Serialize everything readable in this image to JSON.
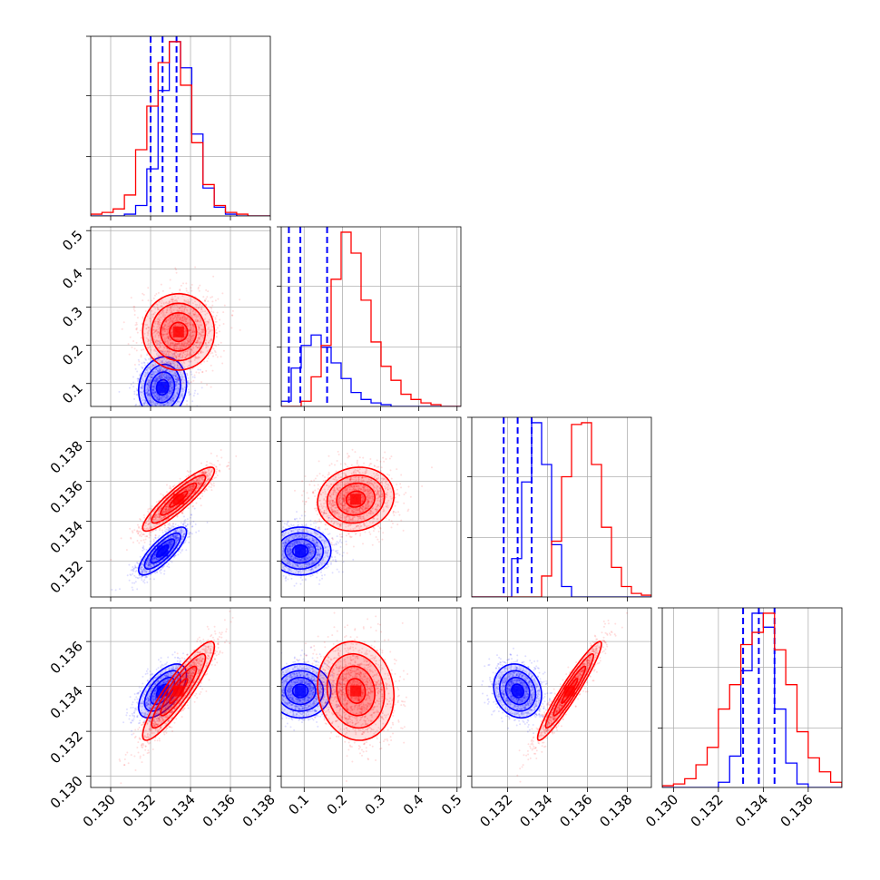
{
  "chart_data": {
    "type": "corner",
    "title": "",
    "n_params": 4,
    "grid": true,
    "params": [
      {
        "range": [
          0.129,
          0.138
        ],
        "ticks": [
          0.13,
          0.132,
          0.134,
          0.136,
          0.138
        ],
        "tick_labels": [
          "0.130",
          "0.132",
          "0.134",
          "0.136",
          "0.138"
        ],
        "label": ""
      },
      {
        "range": [
          0.04,
          0.51
        ],
        "ticks": [
          0.1,
          0.2,
          0.3,
          0.4,
          0.5
        ],
        "tick_labels": [
          "0.1",
          "0.2",
          "0.3",
          "0.4",
          "0.5"
        ],
        "label": ""
      },
      {
        "range": [
          0.1302,
          0.1392
        ],
        "ticks": [
          0.132,
          0.134,
          0.136,
          0.138
        ],
        "tick_labels": [
          "0.132",
          "0.134",
          "0.136",
          "0.138"
        ],
        "label": ""
      },
      {
        "range": [
          0.1295,
          0.1375
        ],
        "ticks": [
          0.13,
          0.132,
          0.134,
          0.136
        ],
        "tick_labels": [
          "0.130",
          "0.132",
          "0.134",
          "0.136"
        ],
        "label": ""
      }
    ],
    "series": [
      {
        "color": "#0000ff",
        "means": [
          0.1326,
          0.09,
          0.1325,
          0.1338
        ],
        "sigmas": [
          0.0006,
          0.04,
          0.0006,
          0.0006
        ],
        "correlations": [
          [
            1,
            0.1,
            0.8,
            0.6
          ],
          [
            0.1,
            1,
            0.0,
            0.0
          ],
          [
            0.8,
            0.0,
            1,
            -0.15
          ],
          [
            0.6,
            0.0,
            -0.15,
            1
          ]
        ],
        "quantiles": [
          [
            0.132,
            0.1326,
            0.1333
          ],
          [
            0.06,
            0.09,
            0.16
          ],
          [
            0.1318,
            0.1325,
            0.1332
          ],
          [
            0.1331,
            0.1338,
            0.1345
          ]
        ],
        "histograms": [
          [
            0,
            0,
            0,
            0.01,
            0.06,
            0.27,
            0.72,
            1.0,
            0.85,
            0.47,
            0.16,
            0.05,
            0.01,
            0,
            0,
            0
          ],
          [
            0.03,
            0.22,
            0.35,
            0.41,
            0.34,
            0.25,
            0.16,
            0.08,
            0.04,
            0.02,
            0.01,
            0,
            0,
            0,
            0,
            0,
            0,
            0
          ],
          [
            0,
            0,
            0,
            0,
            0.22,
            0.66,
            1.0,
            0.76,
            0.3,
            0.06,
            0,
            0,
            0,
            0,
            0,
            0,
            0,
            0
          ],
          [
            0,
            0,
            0,
            0,
            0,
            0.03,
            0.18,
            0.67,
            1.0,
            0.92,
            0.45,
            0.14,
            0.02,
            0,
            0,
            0
          ]
        ]
      },
      {
        "color": "#ff0000",
        "means": [
          0.1334,
          0.235,
          0.1351,
          0.1338
        ],
        "sigmas": [
          0.0009,
          0.05,
          0.0008,
          0.0011
        ],
        "correlations": [
          [
            1,
            0.0,
            0.9,
            0.9
          ],
          [
            0.0,
            1,
            0.1,
            -0.1
          ],
          [
            0.9,
            0.1,
            1,
            0.95
          ],
          [
            0.9,
            -0.1,
            0.95,
            1
          ]
        ],
        "quantiles": [],
        "histograms": [
          [
            0.01,
            0.02,
            0.04,
            0.12,
            0.38,
            0.63,
            0.88,
            1.0,
            0.75,
            0.42,
            0.18,
            0.06,
            0.02,
            0.01,
            0,
            0
          ],
          [
            0,
            0,
            0.03,
            0.17,
            0.35,
            0.73,
            1.0,
            0.88,
            0.61,
            0.37,
            0.23,
            0.15,
            0.07,
            0.04,
            0.02,
            0.01,
            0,
            0
          ],
          [
            0,
            0,
            0,
            0,
            0,
            0,
            0,
            0.12,
            0.32,
            0.69,
            0.99,
            1.0,
            0.76,
            0.4,
            0.17,
            0.06,
            0.02,
            0.01
          ],
          [
            0.01,
            0.02,
            0.05,
            0.13,
            0.23,
            0.45,
            0.59,
            0.82,
            0.89,
            1.0,
            0.79,
            0.59,
            0.32,
            0.17,
            0.09,
            0.03
          ]
        ]
      }
    ]
  }
}
